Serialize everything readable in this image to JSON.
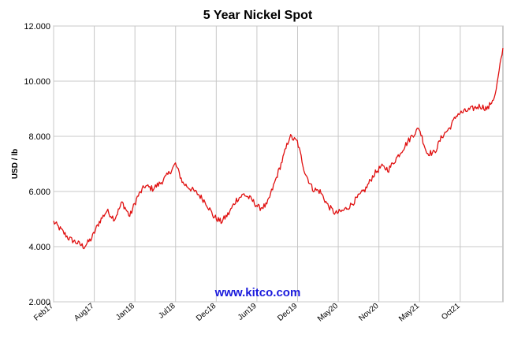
{
  "chart_data": {
    "type": "line",
    "title": "5 Year Nickel Spot",
    "xlabel": "",
    "ylabel": "USD / lb",
    "ylim": [
      2.0,
      12.0
    ],
    "yticks": [
      "2.000",
      "4.000",
      "6.000",
      "8.000",
      "10.000",
      "12.000"
    ],
    "xticks": [
      "Feb17",
      "Aug17",
      "Jan18",
      "Jul18",
      "Dec18",
      "Jun19",
      "Dec19",
      "May20",
      "Nov20",
      "May21",
      "Oct21"
    ],
    "grid": true,
    "watermark": "www.kitco.com",
    "series": [
      {
        "color": "#e01010",
        "x": [
          "Feb17",
          "Mar17",
          "Apr17",
          "May17",
          "Jun17",
          "Jul17",
          "Aug17",
          "Sep17",
          "Oct17",
          "Nov17",
          "Dec17",
          "Jan18",
          "Feb18",
          "Mar18",
          "Apr18",
          "May18",
          "Jun18",
          "Jul18",
          "Aug18",
          "Sep18",
          "Oct18",
          "Nov18",
          "Dec18",
          "Jan19",
          "Feb19",
          "Mar19",
          "Apr19",
          "May19",
          "Jun19",
          "Jul19",
          "Aug19",
          "Sep19",
          "Oct19",
          "Nov19",
          "Dec19",
          "Jan20",
          "Feb20",
          "Mar20",
          "Apr20",
          "May20",
          "Jun20",
          "Jul20",
          "Aug20",
          "Sep20",
          "Oct20",
          "Nov20",
          "Dec20",
          "Jan21",
          "Feb21",
          "Mar21",
          "Apr21",
          "May21",
          "Jun21",
          "Jul21",
          "Aug21",
          "Sep21",
          "Oct21",
          "Nov21",
          "Dec21",
          "Jan22"
        ],
        "values": [
          4.9,
          4.6,
          4.3,
          4.15,
          4.0,
          4.3,
          4.9,
          5.3,
          5.0,
          5.6,
          5.1,
          5.8,
          6.2,
          6.1,
          6.3,
          6.6,
          7.0,
          6.3,
          6.1,
          5.9,
          5.6,
          5.1,
          4.9,
          5.2,
          5.7,
          5.9,
          5.7,
          5.4,
          5.5,
          6.3,
          7.1,
          8.0,
          7.8,
          6.7,
          6.1,
          6.0,
          5.5,
          5.2,
          5.3,
          5.5,
          5.8,
          6.1,
          6.6,
          6.9,
          6.8,
          7.2,
          7.6,
          8.0,
          8.3,
          7.4,
          7.4,
          8.0,
          8.3,
          8.8,
          8.9,
          9.0,
          9.1,
          9.0,
          9.5,
          11.2
        ]
      }
    ]
  }
}
